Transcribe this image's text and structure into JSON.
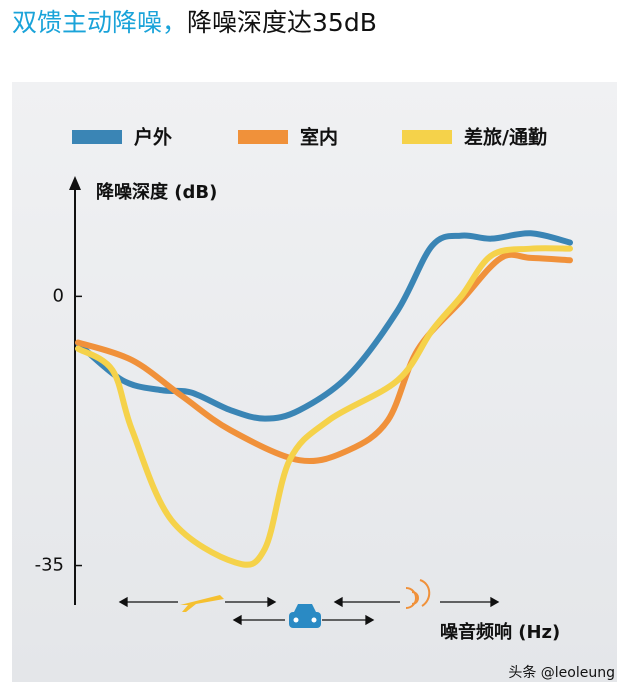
{
  "chart_data": {
    "type": "line",
    "title_highlight": "双馈主动降噪，",
    "title": "降噪深度达35dB",
    "ylabel": "降噪深度 (dB)",
    "xlabel": "噪音频响 (Hz)",
    "watermark": "头条 @leoleung",
    "xlim": [
      0,
      100
    ],
    "ylim": [
      -40,
      15
    ],
    "yticks": [
      0,
      -35
    ],
    "legend": "top",
    "series": [
      {
        "name": "户外",
        "color": "#3a85b5",
        "x": [
          0,
          9,
          17,
          23,
          31,
          38,
          45,
          55,
          65,
          72,
          78,
          84,
          92,
          100
        ],
        "values": [
          -6.1,
          -10.9,
          -12.2,
          -12.5,
          -14.8,
          -15.9,
          -14.8,
          -10.3,
          -1.8,
          6.6,
          7.9,
          7.5,
          8.2,
          7.0
        ]
      },
      {
        "name": "室内",
        "color": "#f0913a",
        "x": [
          0,
          11,
          21,
          31,
          45,
          55,
          63,
          69,
          78,
          86,
          92,
          100
        ],
        "values": [
          -6.0,
          -8.3,
          -12.9,
          -17.4,
          -21.3,
          -20.0,
          -16.1,
          -7.0,
          -0.5,
          5.0,
          5.0,
          4.7
        ]
      },
      {
        "name": "差旅/通勤",
        "color": "#f5d24a",
        "x": [
          0,
          7,
          11,
          19,
          32,
          38,
          43,
          51,
          65,
          72,
          78,
          84,
          92,
          100
        ],
        "values": [
          -6.8,
          -9.6,
          -17.4,
          -29.1,
          -34.6,
          -32.8,
          -21.3,
          -16.1,
          -10.9,
          -4.4,
          0.1,
          5.3,
          6.2,
          6.2
        ]
      }
    ]
  }
}
